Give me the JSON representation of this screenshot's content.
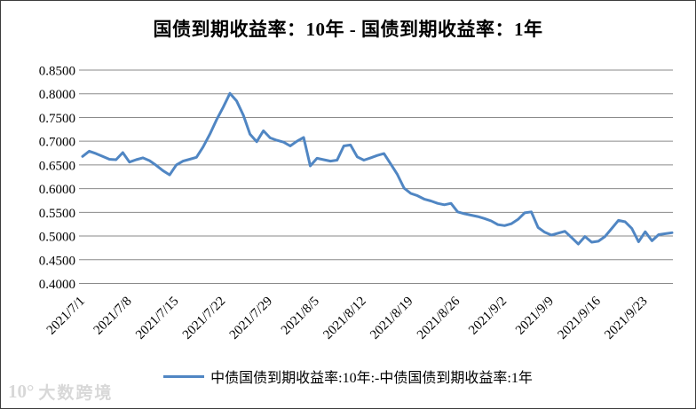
{
  "title": "国债到期收益率：10年 - 国债到期收益率：1年",
  "legend": {
    "label": "中债国债到期收益率:10年:-中债国债到期收益率:1年"
  },
  "watermark": {
    "logo": "10°",
    "text": "大数跨境"
  },
  "colors": {
    "line": "#5086c3",
    "grid": "#8a8a8a",
    "axis_text": "#000000",
    "border": "#3c3c3c",
    "watermark": "#d8d8d8",
    "background": "#ffffff"
  },
  "chart_data": {
    "type": "line",
    "title": "国债到期收益率：10年 - 国债到期收益率：1年",
    "xlabel": "",
    "ylabel": "",
    "ylim": [
      0.4,
      0.85
    ],
    "y_ticks": [
      0.4,
      0.45,
      0.5,
      0.55,
      0.6,
      0.65,
      0.7,
      0.75,
      0.8,
      0.85
    ],
    "y_tick_decimals": 4,
    "grid": "horizontal",
    "legend_position": "bottom",
    "x_label_rotation": -45,
    "x_tick_step_days": 7,
    "x_tick_labels": [
      "2021/7/1",
      "2021/7/8",
      "2021/7/15",
      "2021/7/22",
      "2021/7/29",
      "2021/8/5",
      "2021/8/12",
      "2021/8/19",
      "2021/8/26",
      "2021/9/2",
      "2021/9/9",
      "2021/9/16",
      "2021/9/23"
    ],
    "x": [
      "2021/7/1",
      "2021/7/2",
      "2021/7/3",
      "2021/7/4",
      "2021/7/5",
      "2021/7/6",
      "2021/7/7",
      "2021/7/8",
      "2021/7/9",
      "2021/7/10",
      "2021/7/11",
      "2021/7/12",
      "2021/7/13",
      "2021/7/14",
      "2021/7/15",
      "2021/7/16",
      "2021/7/17",
      "2021/7/18",
      "2021/7/19",
      "2021/7/20",
      "2021/7/21",
      "2021/7/22",
      "2021/7/23",
      "2021/7/24",
      "2021/7/25",
      "2021/7/26",
      "2021/7/27",
      "2021/7/28",
      "2021/7/29",
      "2021/7/30",
      "2021/7/31",
      "2021/8/1",
      "2021/8/2",
      "2021/8/3",
      "2021/8/4",
      "2021/8/5",
      "2021/8/6",
      "2021/8/7",
      "2021/8/8",
      "2021/8/9",
      "2021/8/10",
      "2021/8/11",
      "2021/8/12",
      "2021/8/13",
      "2021/8/14",
      "2021/8/15",
      "2021/8/16",
      "2021/8/17",
      "2021/8/18",
      "2021/8/19",
      "2021/8/20",
      "2021/8/21",
      "2021/8/22",
      "2021/8/23",
      "2021/8/24",
      "2021/8/25",
      "2021/8/26",
      "2021/8/27",
      "2021/8/28",
      "2021/8/29",
      "2021/8/30",
      "2021/8/31",
      "2021/9/1",
      "2021/9/2",
      "2021/9/3",
      "2021/9/4",
      "2021/9/5",
      "2021/9/6",
      "2021/9/7",
      "2021/9/8",
      "2021/9/9",
      "2021/9/10",
      "2021/9/11",
      "2021/9/12",
      "2021/9/13",
      "2021/9/14",
      "2021/9/15",
      "2021/9/16",
      "2021/9/17",
      "2021/9/18",
      "2021/9/19",
      "2021/9/20",
      "2021/9/21",
      "2021/9/22",
      "2021/9/23",
      "2021/9/24",
      "2021/9/25",
      "2021/9/26",
      "2021/9/27"
    ],
    "series": [
      {
        "name": "中债国债到期收益率:10年:-中债国债到期收益率:1年",
        "values": [
          0.668,
          0.679,
          0.674,
          0.668,
          0.662,
          0.661,
          0.676,
          0.656,
          0.661,
          0.665,
          0.659,
          0.649,
          0.638,
          0.629,
          0.65,
          0.658,
          0.662,
          0.666,
          0.688,
          0.715,
          0.745,
          0.772,
          0.801,
          0.785,
          0.755,
          0.715,
          0.699,
          0.722,
          0.707,
          0.702,
          0.698,
          0.69,
          0.7,
          0.708,
          0.648,
          0.664,
          0.661,
          0.658,
          0.66,
          0.69,
          0.692,
          0.667,
          0.66,
          0.665,
          0.67,
          0.674,
          0.652,
          0.63,
          0.601,
          0.59,
          0.585,
          0.578,
          0.574,
          0.569,
          0.566,
          0.569,
          0.551,
          0.547,
          0.544,
          0.541,
          0.537,
          0.532,
          0.524,
          0.522,
          0.526,
          0.535,
          0.549,
          0.551,
          0.518,
          0.508,
          0.502,
          0.506,
          0.51,
          0.497,
          0.483,
          0.499,
          0.487,
          0.489,
          0.499,
          0.516,
          0.533,
          0.53,
          0.516,
          0.488,
          0.509,
          0.49,
          0.503,
          0.505,
          0.507
        ]
      }
    ]
  }
}
